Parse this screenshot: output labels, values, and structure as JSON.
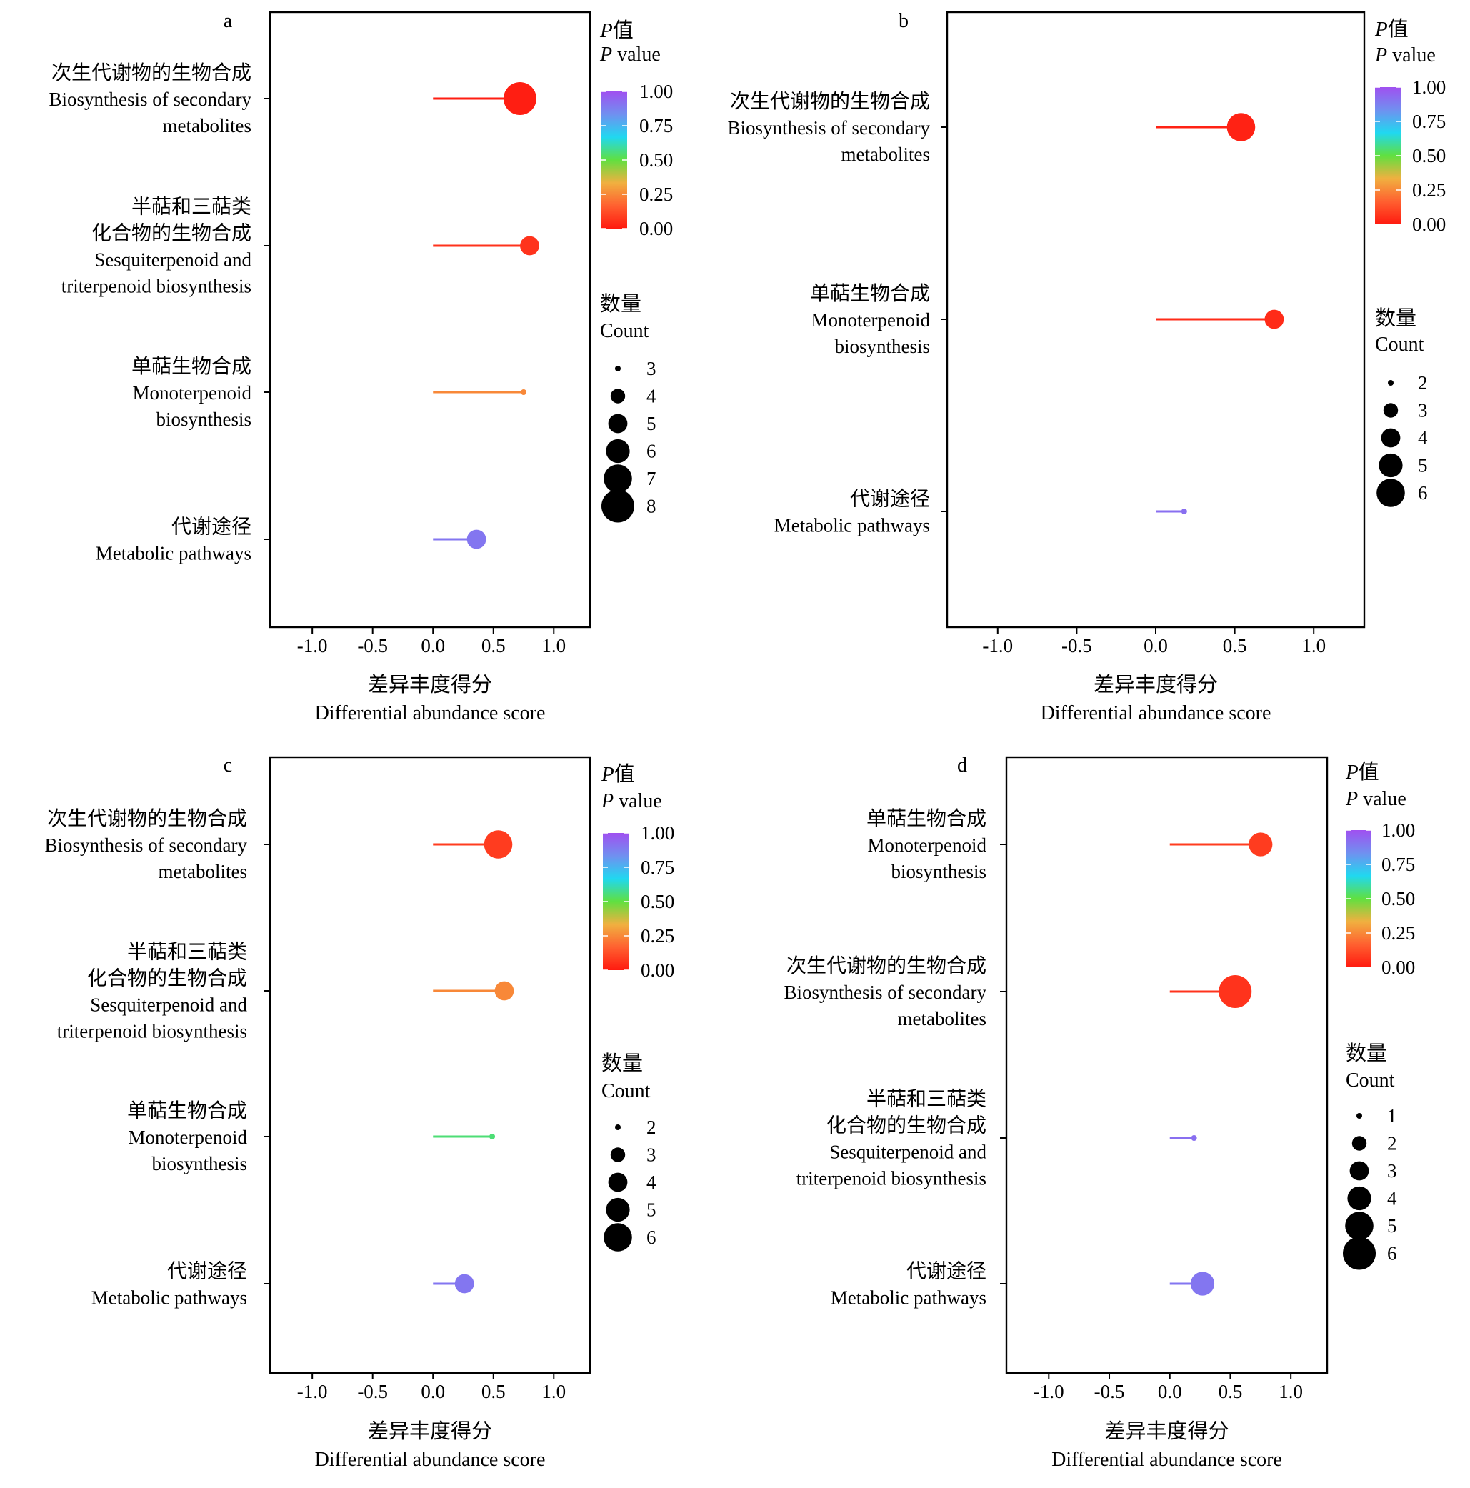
{
  "chart_data": [
    {
      "type": "lollipop",
      "panel": "a",
      "categories": [
        {
          "zh": "次生代谢物的生物合成",
          "en": [
            "Biosynthesis of secondary",
            "metabolites"
          ]
        },
        {
          "zh": [
            "半萜和三萜类",
            "化合物的生物合成"
          ],
          "en": [
            "Sesquiterpenoid and",
            "triterpenoid biosynthesis"
          ]
        },
        {
          "zh": "单萜生物合成",
          "en": [
            "Monoterpenoid",
            "biosynthesis"
          ]
        },
        {
          "zh": "代谢途径",
          "en": [
            "Metabolic pathways"
          ]
        }
      ],
      "values": [
        0.72,
        0.8,
        0.75,
        0.36
      ],
      "p_values": [
        0.01,
        0.06,
        0.25,
        0.9
      ],
      "counts": [
        8,
        5,
        3,
        5
      ],
      "xlim": [
        -1.35,
        1.3
      ],
      "xticks": [
        -1.0,
        -0.5,
        0.0,
        0.5,
        1.0
      ],
      "xtick_labels": [
        "-1.0",
        "-0.5",
        "0.0",
        "0.5",
        "1.0"
      ],
      "xlabel": {
        "zh": "差异丰度得分",
        "en": "Differential abundance score"
      },
      "color_legend": {
        "title_zh": "值",
        "title_var": "P",
        "title_en": " value",
        "ticks": [
          "1.00",
          "0.75",
          "0.50",
          "0.25",
          "0.00"
        ]
      },
      "size_legend": {
        "title_zh": "数量",
        "title_en": "Count",
        "values": [
          3,
          4,
          5,
          6,
          7,
          8
        ]
      },
      "grid": false
    },
    {
      "type": "lollipop",
      "panel": "b",
      "categories": [
        {
          "zh": "次生代谢物的生物合成",
          "en": [
            "Biosynthesis of secondary",
            "metabolites"
          ]
        },
        {
          "zh": "单萜生物合成",
          "en": [
            "Monoterpenoid",
            "biosynthesis"
          ]
        },
        {
          "zh": "代谢途径",
          "en": [
            "Metabolic pathways"
          ]
        }
      ],
      "values": [
        0.54,
        0.75,
        0.18
      ],
      "p_values": [
        0.02,
        0.04,
        0.92
      ],
      "counts": [
        6,
        4,
        2
      ],
      "xlim": [
        -1.32,
        1.32
      ],
      "xticks": [
        -1.0,
        -0.5,
        0.0,
        0.5,
        1.0
      ],
      "xtick_labels": [
        "-1.0",
        "-0.5",
        "0.0",
        "0.5",
        "1.0"
      ],
      "xlabel": {
        "zh": "差异丰度得分",
        "en": "Differential abundance score"
      },
      "color_legend": {
        "title_zh": "值",
        "title_var": "P",
        "title_en": " value",
        "ticks": [
          "1.00",
          "0.75",
          "0.50",
          "0.25",
          "0.00"
        ]
      },
      "size_legend": {
        "title_zh": "数量",
        "title_en": "Count",
        "values": [
          2,
          3,
          4,
          5,
          6
        ]
      },
      "grid": false
    },
    {
      "type": "lollipop",
      "panel": "c",
      "categories": [
        {
          "zh": "次生代谢物的生物合成",
          "en": [
            "Biosynthesis of secondary",
            "metabolites"
          ]
        },
        {
          "zh": [
            "半萜和三萜类",
            "化合物的生物合成"
          ],
          "en": [
            "Sesquiterpenoid and",
            "triterpenoid biosynthesis"
          ]
        },
        {
          "zh": "单萜生物合成",
          "en": [
            "Monoterpenoid",
            "biosynthesis"
          ]
        },
        {
          "zh": "代谢途径",
          "en": [
            "Metabolic pathways"
          ]
        }
      ],
      "values": [
        0.54,
        0.59,
        0.49,
        0.26
      ],
      "p_values": [
        0.08,
        0.25,
        0.55,
        0.9
      ],
      "counts": [
        6,
        4,
        2,
        4
      ],
      "xlim": [
        -1.35,
        1.3
      ],
      "xticks": [
        -1.0,
        -0.5,
        0.0,
        0.5,
        1.0
      ],
      "xtick_labels": [
        "-1.0",
        "-0.5",
        "0.0",
        "0.5",
        "1.0"
      ],
      "xlabel": {
        "zh": "差异丰度得分",
        "en": "Differential abundance score"
      },
      "color_legend": {
        "title_zh": "值",
        "title_var": "P",
        "title_en": " value",
        "ticks": [
          "1.00",
          "0.75",
          "0.50",
          "0.25",
          "0.00"
        ]
      },
      "size_legend": {
        "title_zh": "数量",
        "title_en": "Count",
        "values": [
          2,
          3,
          4,
          5,
          6
        ]
      },
      "grid": false
    },
    {
      "type": "lollipop",
      "panel": "d",
      "categories": [
        {
          "zh": "单萜生物合成",
          "en": [
            "Monoterpenoid",
            "biosynthesis"
          ]
        },
        {
          "zh": "次生代谢物的生物合成",
          "en": [
            "Biosynthesis of secondary",
            "metabolites"
          ]
        },
        {
          "zh": [
            "半萜和三萜类",
            "化合物的生物合成"
          ],
          "en": [
            "Sesquiterpenoid and",
            "triterpenoid biosynthesis"
          ]
        },
        {
          "zh": "代谢途径",
          "en": [
            "Metabolic pathways"
          ]
        }
      ],
      "values": [
        0.75,
        0.54,
        0.2,
        0.27
      ],
      "p_values": [
        0.08,
        0.06,
        0.92,
        0.9
      ],
      "counts": [
        4,
        6,
        1,
        4
      ],
      "xlim": [
        -1.35,
        1.3
      ],
      "xticks": [
        -1.0,
        -0.5,
        0.0,
        0.5,
        1.0
      ],
      "xtick_labels": [
        "-1.0",
        "-0.5",
        "0.0",
        "0.5",
        "1.0"
      ],
      "xlabel": {
        "zh": "差异丰度得分",
        "en": "Differential abundance score"
      },
      "color_legend": {
        "title_zh": "值",
        "title_var": "P",
        "title_en": " value",
        "ticks": [
          "1.00",
          "0.75",
          "0.50",
          "0.25",
          "0.00"
        ]
      },
      "size_legend": {
        "title_zh": "数量",
        "title_en": "Count",
        "values": [
          1,
          2,
          3,
          4,
          5,
          6
        ]
      },
      "grid": false
    }
  ],
  "colorscale": [
    "#ff1a10",
    "#ff6030",
    "#f0b040",
    "#60e040",
    "#20d8f0",
    "#7090f0",
    "#a050f0"
  ]
}
